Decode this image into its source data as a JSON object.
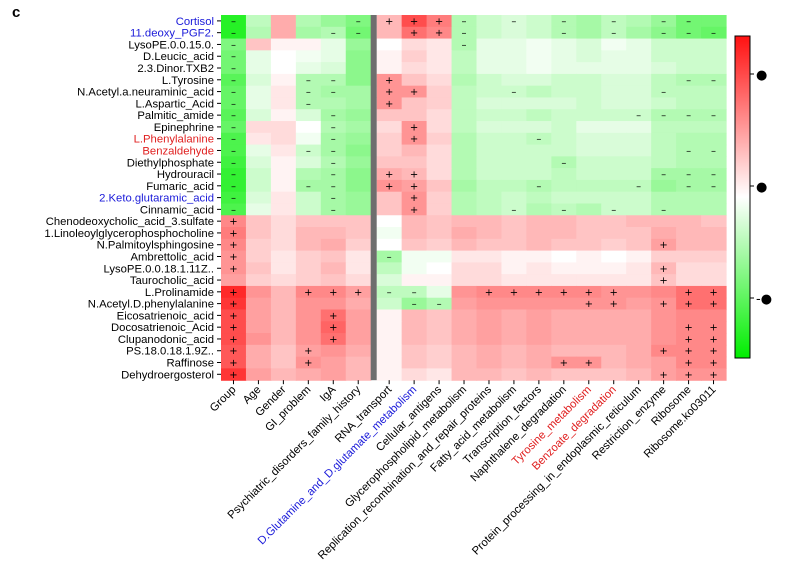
{
  "chart_data": {
    "type": "heatmap",
    "panel_label": "c",
    "separator_after_column": 5,
    "rows": [
      "Cortisol",
      "11.deoxy_PGF2.",
      "LysoPE.0.0.15.0.",
      "D.Leucic_acid",
      "2.3.Dinor.TXB2",
      "L.Tyrosine",
      "N.Acetyl.a.neuraminic_acid",
      "L.Aspartic_Acid",
      "Palmitic_amide",
      "Epinephrine",
      "L.Phenylalanine",
      "Benzaldehyde",
      "Diethylphosphate",
      "Hydrouracil",
      "Fumaric_acid",
      "2.Keto.glutaramic_acid",
      "Cinnamic_acid",
      "Chenodeoxycholic_acid_3.sulfate",
      "1.Linoleoylglycerophosphocholine",
      "N.Palmitoylsphingosine",
      "Ambrettolic_acid",
      "LysoPE.0.0.18.1.11Z..",
      "Taurocholic_acid",
      "L.Prolinamide",
      "N.Acetyl.D.phenylalanine",
      "Eicosatrienoic_acid",
      "Docosatrienoic_Acid",
      "Clupanodonic_acid",
      "PS.18.0.18.1.9Z..",
      "Raffinose",
      "Dehydroergosterol"
    ],
    "row_colors": [
      "#1a1ad9",
      "#1a1ad9",
      "#000000",
      "#000000",
      "#000000",
      "#000000",
      "#000000",
      "#000000",
      "#000000",
      "#000000",
      "#e02020",
      "#e02020",
      "#000000",
      "#000000",
      "#000000",
      "#1a1ad9",
      "#000000",
      "#000000",
      "#000000",
      "#000000",
      "#000000",
      "#000000",
      "#000000",
      "#000000",
      "#000000",
      "#000000",
      "#000000",
      "#000000",
      "#000000",
      "#000000",
      "#000000"
    ],
    "columns": [
      "Group",
      "Age",
      "Gender",
      "GI_problem",
      "IgA",
      "Psychiatric_disorders_family_history",
      "RNA_transport",
      "D.Glutamine_and_D.glutamate_metabolism",
      "Cellular_antigens",
      "Glycerophospholipid_metabolism",
      "Replication_recombination_and_repair_proteins",
      "Fatty_acid_metabolism",
      "Transcription_factors",
      "Naphthalene_degradation",
      "Tyrosine_metabolism",
      "Benzoate_degradation",
      "Protein_processing_in_endoplasmic_reticulum",
      "Restriction_enzyme",
      "Ribosome",
      "Ribosome.ko03011"
    ],
    "column_colors": [
      "#000000",
      "#000000",
      "#000000",
      "#000000",
      "#000000",
      "#000000",
      "#000000",
      "#1a1ad9",
      "#000000",
      "#000000",
      "#000000",
      "#000000",
      "#000000",
      "#000000",
      "#e02020",
      "#e02020",
      "#000000",
      "#000000",
      "#000000",
      "#000000"
    ],
    "values": [
      [
        -0.85,
        -0.25,
        0.35,
        -0.3,
        -0.4,
        -0.5,
        0.3,
        0.75,
        0.55,
        -0.3,
        -0.2,
        -0.15,
        -0.2,
        -0.3,
        -0.35,
        -0.25,
        -0.3,
        -0.4,
        -0.55,
        -0.55
      ],
      [
        -0.85,
        -0.3,
        0.35,
        -0.35,
        -0.3,
        -0.55,
        0.3,
        0.6,
        0.5,
        -0.3,
        -0.2,
        -0.15,
        -0.2,
        -0.3,
        -0.35,
        -0.25,
        -0.35,
        -0.45,
        -0.55,
        -0.6
      ],
      [
        -0.5,
        0.25,
        0.05,
        0.05,
        -0.1,
        -0.4,
        0.0,
        0.15,
        0.1,
        -0.3,
        -0.1,
        -0.1,
        -0.05,
        -0.1,
        -0.15,
        -0.05,
        -0.1,
        -0.2,
        -0.2,
        -0.2
      ],
      [
        -0.55,
        -0.1,
        0.0,
        -0.05,
        -0.1,
        -0.45,
        0.05,
        0.2,
        0.1,
        -0.25,
        -0.1,
        -0.1,
        -0.05,
        -0.1,
        -0.15,
        -0.1,
        -0.1,
        -0.2,
        -0.2,
        -0.2
      ],
      [
        -0.55,
        -0.1,
        0.0,
        -0.1,
        -0.15,
        -0.45,
        0.05,
        0.15,
        0.1,
        -0.25,
        -0.1,
        -0.1,
        -0.05,
        -0.1,
        -0.1,
        -0.1,
        -0.1,
        -0.15,
        -0.2,
        -0.2
      ],
      [
        -0.65,
        -0.15,
        0.05,
        -0.3,
        -0.3,
        -0.45,
        0.45,
        0.25,
        0.15,
        -0.3,
        -0.2,
        -0.15,
        -0.15,
        -0.2,
        -0.2,
        -0.15,
        -0.15,
        -0.25,
        -0.3,
        -0.3
      ],
      [
        -0.6,
        -0.1,
        0.1,
        -0.3,
        -0.35,
        -0.35,
        0.45,
        0.45,
        0.2,
        -0.25,
        -0.2,
        -0.2,
        -0.25,
        -0.2,
        -0.2,
        -0.15,
        -0.15,
        -0.25,
        -0.25,
        -0.25
      ],
      [
        -0.6,
        -0.1,
        0.1,
        -0.3,
        -0.3,
        -0.35,
        0.45,
        0.25,
        0.2,
        -0.25,
        -0.15,
        -0.15,
        -0.15,
        -0.15,
        -0.2,
        -0.15,
        -0.15,
        -0.2,
        -0.25,
        -0.25
      ],
      [
        -0.65,
        -0.15,
        0.05,
        -0.15,
        -0.35,
        -0.4,
        0.25,
        0.25,
        0.15,
        -0.25,
        -0.2,
        -0.2,
        -0.25,
        -0.2,
        -0.2,
        -0.2,
        -0.2,
        -0.3,
        -0.3,
        -0.3
      ],
      [
        -0.6,
        0.15,
        0.15,
        0.0,
        -0.3,
        -0.35,
        0.15,
        0.45,
        0.15,
        -0.25,
        -0.15,
        -0.15,
        -0.15,
        -0.2,
        -0.1,
        -0.1,
        -0.1,
        -0.25,
        -0.25,
        -0.25
      ],
      [
        -0.7,
        0.1,
        0.15,
        -0.05,
        -0.35,
        -0.4,
        0.2,
        0.45,
        0.2,
        -0.3,
        -0.2,
        -0.2,
        -0.25,
        -0.2,
        -0.15,
        -0.15,
        -0.15,
        -0.25,
        -0.3,
        -0.3
      ],
      [
        -0.7,
        -0.1,
        0.1,
        -0.2,
        -0.35,
        -0.45,
        0.2,
        0.3,
        0.15,
        -0.3,
        -0.2,
        -0.2,
        -0.2,
        -0.2,
        -0.15,
        -0.15,
        -0.15,
        -0.25,
        -0.3,
        -0.3
      ],
      [
        -0.75,
        -0.15,
        0.05,
        -0.15,
        -0.3,
        -0.4,
        0.25,
        0.25,
        0.15,
        -0.3,
        -0.2,
        -0.2,
        -0.2,
        -0.3,
        -0.2,
        -0.2,
        -0.2,
        -0.25,
        -0.3,
        -0.3
      ],
      [
        -0.8,
        -0.2,
        0.05,
        -0.3,
        -0.35,
        -0.45,
        0.35,
        0.3,
        0.15,
        -0.3,
        -0.2,
        -0.2,
        -0.2,
        -0.25,
        -0.2,
        -0.2,
        -0.2,
        -0.35,
        -0.35,
        -0.35
      ],
      [
        -0.8,
        -0.2,
        0.05,
        -0.35,
        -0.35,
        -0.45,
        0.45,
        0.4,
        0.25,
        -0.35,
        -0.25,
        -0.25,
        -0.3,
        -0.25,
        -0.25,
        -0.25,
        -0.25,
        -0.4,
        -0.35,
        -0.35
      ],
      [
        -0.75,
        -0.15,
        0.1,
        -0.2,
        -0.35,
        -0.4,
        0.25,
        0.45,
        0.2,
        -0.3,
        -0.25,
        -0.2,
        -0.25,
        -0.2,
        -0.2,
        -0.2,
        -0.2,
        -0.3,
        -0.3,
        -0.3
      ],
      [
        -0.7,
        -0.1,
        0.1,
        -0.2,
        -0.35,
        -0.4,
        0.25,
        0.45,
        0.2,
        -0.3,
        -0.25,
        -0.2,
        -0.3,
        -0.25,
        -0.3,
        -0.2,
        -0.2,
        -0.3,
        -0.3,
        -0.3
      ],
      [
        0.5,
        0.25,
        0.15,
        0.25,
        0.25,
        0.25,
        0.0,
        0.3,
        0.25,
        0.3,
        0.3,
        0.25,
        0.3,
        0.3,
        0.25,
        0.25,
        0.3,
        0.3,
        0.3,
        0.25
      ],
      [
        0.55,
        0.25,
        0.15,
        0.3,
        0.3,
        0.25,
        -0.05,
        0.3,
        0.25,
        0.35,
        0.3,
        0.25,
        0.3,
        0.3,
        0.25,
        0.25,
        0.25,
        0.35,
        0.3,
        0.3
      ],
      [
        0.5,
        0.2,
        0.15,
        0.3,
        0.35,
        0.2,
        0.0,
        0.25,
        0.2,
        0.3,
        0.25,
        0.25,
        0.3,
        0.25,
        0.25,
        0.2,
        0.25,
        0.4,
        0.3,
        0.3
      ],
      [
        0.45,
        0.2,
        0.1,
        0.2,
        0.25,
        0.1,
        -0.35,
        -0.05,
        -0.05,
        0.1,
        0.1,
        0.05,
        0.05,
        0.0,
        0.05,
        0.0,
        0.05,
        0.2,
        0.2,
        0.2
      ],
      [
        0.45,
        0.25,
        0.1,
        0.2,
        0.3,
        0.1,
        -0.25,
        -0.05,
        0.0,
        0.15,
        0.15,
        0.05,
        0.1,
        0.05,
        0.05,
        0.05,
        0.1,
        0.3,
        0.15,
        0.15
      ],
      [
        0.4,
        0.2,
        0.15,
        0.2,
        0.25,
        0.15,
        -0.15,
        0.05,
        0.05,
        0.15,
        0.15,
        0.1,
        0.1,
        0.1,
        0.1,
        0.1,
        0.1,
        0.25,
        0.15,
        0.15
      ],
      [
        0.9,
        0.45,
        0.3,
        0.5,
        0.5,
        0.4,
        -0.25,
        -0.25,
        -0.1,
        0.45,
        0.5,
        0.5,
        0.5,
        0.5,
        0.5,
        0.45,
        0.45,
        0.5,
        0.6,
        0.6
      ],
      [
        0.85,
        0.4,
        0.3,
        0.45,
        0.45,
        0.35,
        -0.2,
        -0.4,
        -0.3,
        0.4,
        0.45,
        0.45,
        0.45,
        0.45,
        0.45,
        0.45,
        0.4,
        0.45,
        0.6,
        0.6
      ],
      [
        0.75,
        0.4,
        0.3,
        0.45,
        0.6,
        0.4,
        0.05,
        0.3,
        0.25,
        0.35,
        0.4,
        0.35,
        0.4,
        0.35,
        0.35,
        0.35,
        0.35,
        0.45,
        0.5,
        0.5
      ],
      [
        0.75,
        0.4,
        0.3,
        0.45,
        0.65,
        0.4,
        0.05,
        0.3,
        0.25,
        0.35,
        0.4,
        0.35,
        0.4,
        0.35,
        0.35,
        0.35,
        0.35,
        0.45,
        0.5,
        0.5
      ],
      [
        0.75,
        0.45,
        0.3,
        0.45,
        0.6,
        0.4,
        0.05,
        0.3,
        0.25,
        0.35,
        0.4,
        0.35,
        0.4,
        0.35,
        0.35,
        0.35,
        0.35,
        0.45,
        0.5,
        0.5
      ],
      [
        0.7,
        0.35,
        0.25,
        0.4,
        0.45,
        0.35,
        0.05,
        0.25,
        0.2,
        0.3,
        0.35,
        0.3,
        0.35,
        0.3,
        0.3,
        0.3,
        0.35,
        0.5,
        0.5,
        0.5
      ],
      [
        0.7,
        0.35,
        0.25,
        0.45,
        0.4,
        0.3,
        0.05,
        0.25,
        0.2,
        0.3,
        0.35,
        0.3,
        0.35,
        0.45,
        0.45,
        0.3,
        0.35,
        0.4,
        0.5,
        0.5
      ],
      [
        0.85,
        0.4,
        0.3,
        0.35,
        0.4,
        0.3,
        0.05,
        0.15,
        0.1,
        0.3,
        0.3,
        0.25,
        0.3,
        0.25,
        0.25,
        0.25,
        0.3,
        0.4,
        0.45,
        0.45
      ]
    ],
    "annotations": [
      [
        "-",
        "",
        "",
        "",
        "",
        "-",
        "+",
        "+",
        "+",
        "-",
        "",
        "-",
        "",
        "-",
        "",
        "-",
        "",
        "-",
        "-",
        ""
      ],
      [
        "-",
        "",
        "",
        "",
        "-",
        "-",
        "",
        "+",
        "+",
        "-",
        "",
        "",
        "",
        "-",
        "",
        "-",
        "",
        "-",
        "-",
        "-"
      ],
      [
        "-",
        "",
        "",
        "",
        "",
        "",
        "",
        "",
        "",
        "-",
        "",
        "",
        "",
        "",
        "",
        "",
        "",
        "",
        "",
        ""
      ],
      [
        "-",
        "",
        "",
        "",
        "",
        "",
        "",
        "",
        "",
        "",
        "",
        "",
        "",
        "",
        "",
        "",
        "",
        "",
        "",
        ""
      ],
      [
        "-",
        "",
        "",
        "",
        "",
        "",
        "",
        "",
        "",
        "",
        "",
        "",
        "",
        "",
        "",
        "",
        "",
        "",
        "",
        ""
      ],
      [
        "-",
        "",
        "",
        "-",
        "-",
        "",
        "+",
        "",
        "",
        "",
        "",
        "",
        "",
        "",
        "",
        "",
        "",
        "",
        "-",
        "-"
      ],
      [
        "-",
        "",
        "",
        "-",
        "-",
        "",
        "+",
        "+",
        "",
        "",
        "",
        "-",
        "",
        "",
        "",
        "",
        "",
        "-",
        "",
        ""
      ],
      [
        "-",
        "",
        "",
        "-",
        "",
        "",
        "+",
        "",
        "",
        "",
        "",
        "",
        "",
        "",
        "",
        "",
        "",
        "",
        "",
        ""
      ],
      [
        "-",
        "",
        "",
        "",
        "-",
        "",
        "",
        "",
        "",
        "",
        "",
        "",
        "",
        "",
        "",
        "",
        "-",
        "-",
        "-",
        "-"
      ],
      [
        "-",
        "",
        "",
        "",
        "-",
        "",
        "",
        "+",
        "",
        "",
        "",
        "",
        "",
        "",
        "",
        "",
        "",
        "",
        "",
        ""
      ],
      [
        "-",
        "",
        "",
        "",
        "-",
        "",
        "",
        "+",
        "",
        "",
        "",
        "",
        "-",
        "",
        "",
        "",
        "",
        "",
        "",
        ""
      ],
      [
        "-",
        "",
        "",
        "-",
        "-",
        "",
        "",
        "",
        "",
        "",
        "",
        "",
        "",
        "",
        "",
        "",
        "",
        "",
        "-",
        "-"
      ],
      [
        "-",
        "",
        "",
        "",
        "-",
        "",
        "",
        "",
        "",
        "",
        "",
        "",
        "",
        "-",
        "",
        "",
        "",
        "",
        "",
        ""
      ],
      [
        "-",
        "",
        "",
        "",
        "-",
        "",
        "+",
        "+",
        "",
        "",
        "",
        "",
        "",
        "",
        "",
        "",
        "",
        "-",
        "-",
        "-"
      ],
      [
        "-",
        "",
        "",
        "-",
        "-",
        "",
        "+",
        "+",
        "",
        "",
        "",
        "",
        "-",
        "",
        "",
        "",
        "-",
        "",
        "-",
        "-"
      ],
      [
        "-",
        "",
        "",
        "",
        "-",
        "",
        "",
        "+",
        "",
        "",
        "",
        "",
        "",
        "",
        "",
        "",
        "",
        "",
        "",
        ""
      ],
      [
        "-",
        "",
        "",
        "",
        "-",
        "",
        "",
        "+",
        "",
        "",
        "",
        "-",
        "",
        "-",
        "",
        "-",
        "",
        "-",
        "",
        ""
      ],
      [
        "+",
        "",
        "",
        "",
        "",
        "",
        "",
        "",
        "",
        "",
        "",
        "",
        "",
        "",
        "",
        "",
        "",
        "",
        "",
        ""
      ],
      [
        "+",
        "",
        "",
        "",
        "",
        "",
        "",
        "",
        "",
        "",
        "",
        "",
        "",
        "",
        "",
        "",
        "",
        "",
        "",
        ""
      ],
      [
        "+",
        "",
        "",
        "",
        "",
        "",
        "",
        "",
        "",
        "",
        "",
        "",
        "",
        "",
        "",
        "",
        "",
        "+",
        "",
        ""
      ],
      [
        "+",
        "",
        "",
        "",
        "",
        "",
        "-",
        "",
        "",
        "",
        "",
        "",
        "",
        "",
        "",
        "",
        "",
        "",
        "",
        ""
      ],
      [
        "+",
        "",
        "",
        "",
        "",
        "",
        "",
        "",
        "",
        "",
        "",
        "",
        "",
        "",
        "",
        "",
        "",
        "+",
        "",
        ""
      ],
      [
        "",
        "",
        "",
        "",
        "",
        "",
        "",
        "",
        "",
        "",
        "",
        "",
        "",
        "",
        "",
        "",
        "",
        "+",
        "",
        ""
      ],
      [
        "+",
        "",
        "",
        "+",
        "+",
        "+",
        "-",
        "-",
        "",
        "",
        "+",
        "+",
        "+",
        "+",
        "+",
        "+",
        "",
        "",
        "+",
        "+"
      ],
      [
        "+",
        "",
        "",
        "",
        "",
        "",
        "",
        "-",
        "-",
        "",
        "",
        "",
        "",
        "",
        "+",
        "+",
        "",
        "+",
        "+",
        "+"
      ],
      [
        "+",
        "",
        "",
        "",
        "+",
        "",
        "",
        "",
        "",
        "",
        "",
        "",
        "",
        "",
        "",
        "",
        "",
        "",
        "",
        ""
      ],
      [
        "+",
        "",
        "",
        "",
        "+",
        "",
        "",
        "",
        "",
        "",
        "",
        "",
        "",
        "",
        "",
        "",
        "",
        "",
        "+",
        "+"
      ],
      [
        "+",
        "",
        "",
        "",
        "+",
        "",
        "",
        "",
        "",
        "",
        "",
        "",
        "",
        "",
        "",
        "",
        "",
        "",
        "+",
        "+"
      ],
      [
        "+",
        "",
        "",
        "+",
        "",
        "",
        "",
        "",
        "",
        "",
        "",
        "",
        "",
        "",
        "",
        "",
        "",
        "+",
        "+",
        "+"
      ],
      [
        "+",
        "",
        "",
        "+",
        "",
        "",
        "",
        "",
        "",
        "",
        "",
        "",
        "",
        "+",
        "+",
        "",
        "",
        "",
        "+",
        "+"
      ],
      [
        "+",
        "",
        "",
        "",
        "",
        "",
        "",
        "",
        "",
        "",
        "",
        "",
        "",
        "",
        "",
        "",
        "",
        "+",
        "+",
        "+"
      ]
    ],
    "colorbar": {
      "colors": [
        "#00ee00",
        "#ffffff",
        "#ff1111"
      ],
      "range": [
        -1,
        1
      ],
      "tick_labels": [
        "●",
        "●",
        "-●"
      ]
    }
  }
}
